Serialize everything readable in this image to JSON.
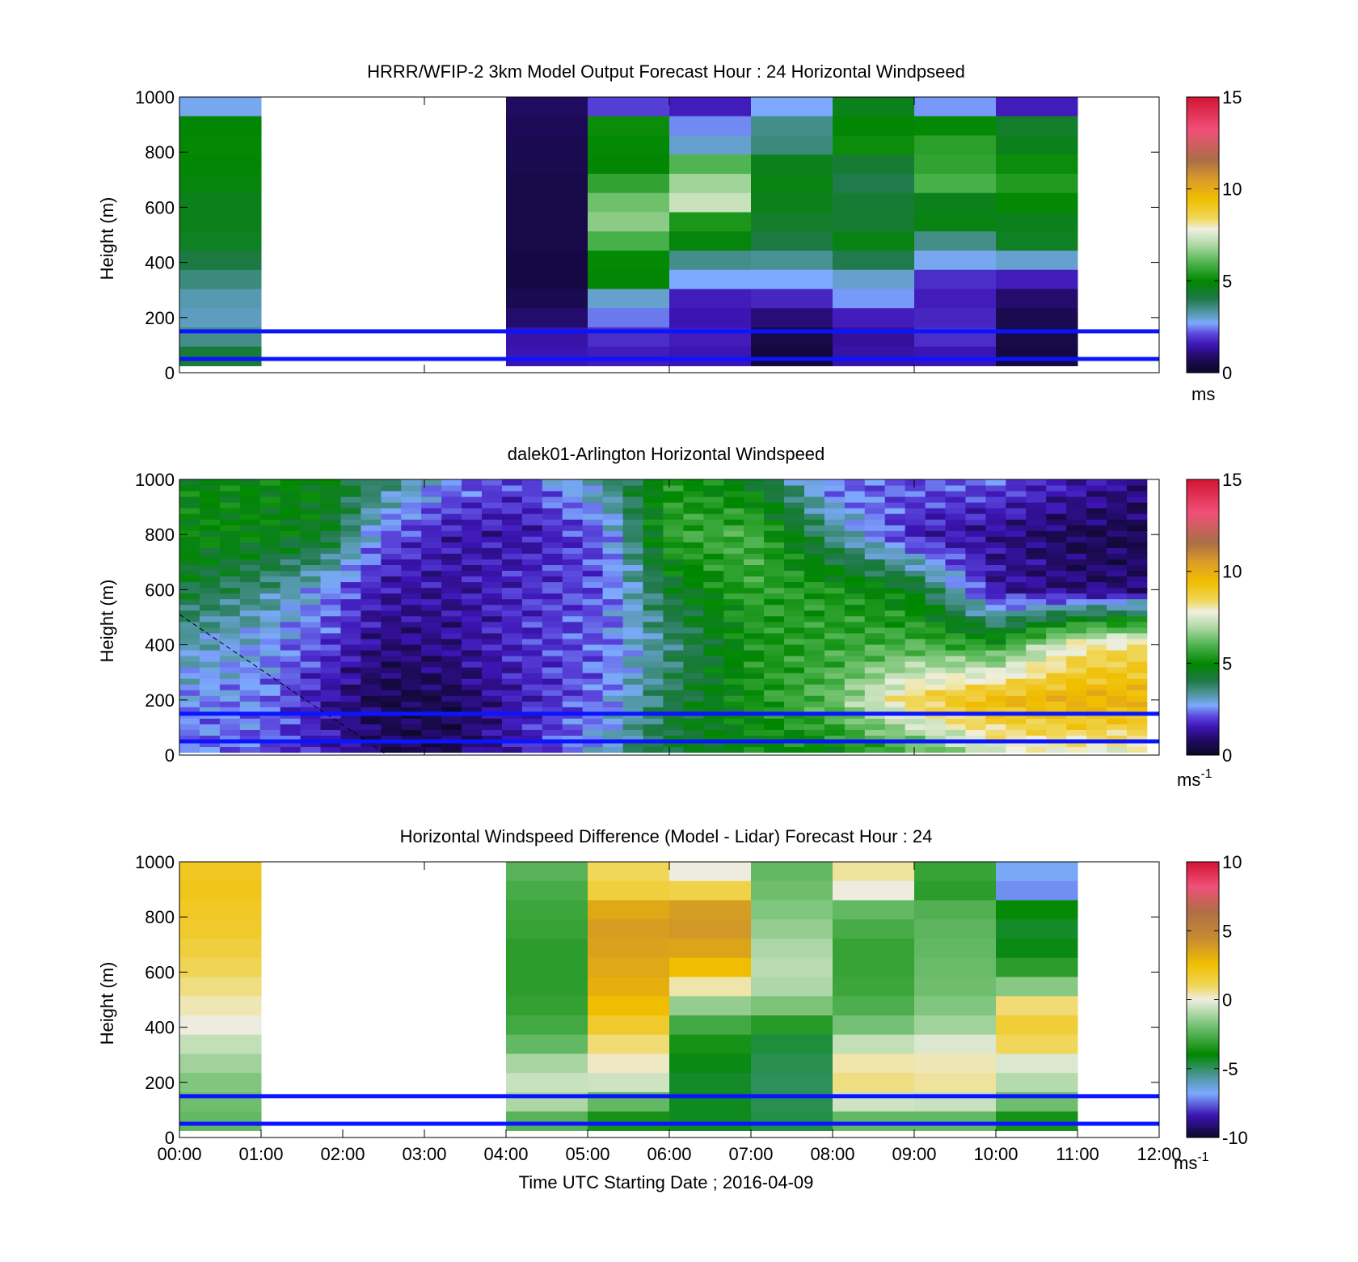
{
  "figure": {
    "xlabel": "Time UTC  Starting Date ; 2016-04-09",
    "x_ticks": [
      "00:00",
      "01:00",
      "02:00",
      "03:00",
      "04:00",
      "05:00",
      "06:00",
      "07:00",
      "08:00",
      "09:00",
      "10:00",
      "11:00",
      "12:00"
    ],
    "reference_heights_m": [
      50,
      150
    ],
    "reference_line_color": "#0a14ff"
  },
  "chart_data": [
    {
      "type": "heatmap",
      "title": "HRRR/WFIP-2 3km Model Output   Forecast Hour : 24 Horizontal Windpseed",
      "ylabel": "Height (m)",
      "ylim": [
        0,
        1000
      ],
      "y_ticks": [
        "0",
        "200",
        "400",
        "600",
        "800",
        "1000"
      ],
      "x_range_hours": [
        0,
        12
      ],
      "colorbar": {
        "range": [
          0,
          15
        ],
        "ticks": [
          "0",
          "5",
          "10",
          "15"
        ],
        "unit": "ms"
      },
      "columns": [
        {
          "start_hour": 0,
          "end_hour": 1,
          "values": [
            2.8,
            4.9,
            5.0,
            4.9,
            4.8,
            4.6,
            4.6,
            4.5,
            4.1,
            3.6,
            3.2,
            3.1,
            3.5,
            4.2
          ]
        },
        {
          "start_hour": 1,
          "end_hour": 4,
          "values": null
        },
        {
          "start_hour": 4,
          "end_hour": 5,
          "values": [
            0.8,
            0.7,
            0.6,
            0.6,
            0.5,
            0.5,
            0.5,
            0.5,
            0.4,
            0.4,
            0.6,
            0.9,
            1.4,
            1.5
          ]
        },
        {
          "start_hour": 5,
          "end_hour": 6,
          "values": [
            2.0,
            5.1,
            5.0,
            4.9,
            5.6,
            6.3,
            6.6,
            5.9,
            5.0,
            4.9,
            3.0,
            2.4,
            1.8,
            1.6
          ]
        },
        {
          "start_hour": 6,
          "end_hour": 7,
          "values": [
            1.6,
            2.5,
            3.0,
            6.0,
            6.8,
            7.3,
            5.3,
            4.8,
            3.5,
            2.7,
            1.6,
            1.5,
            1.6,
            1.5
          ]
        },
        {
          "start_hour": 7,
          "end_hour": 8,
          "values": [
            2.7,
            3.5,
            3.6,
            4.6,
            4.7,
            4.6,
            4.4,
            4.1,
            3.4,
            2.7,
            1.7,
            1.0,
            0.5,
            0.3
          ]
        },
        {
          "start_hour": 8,
          "end_hour": 9,
          "values": [
            4.6,
            4.9,
            5.1,
            4.3,
            4.0,
            4.3,
            4.3,
            4.7,
            4.0,
            3.0,
            2.6,
            1.6,
            1.3,
            1.4
          ]
        },
        {
          "start_hour": 9,
          "end_hour": 10,
          "values": [
            2.6,
            5.0,
            5.5,
            5.6,
            5.9,
            4.6,
            4.7,
            3.5,
            2.8,
            1.8,
            1.6,
            1.7,
            1.8,
            1.5
          ]
        },
        {
          "start_hour": 10,
          "end_hour": 11,
          "values": [
            1.6,
            4.4,
            4.6,
            5.1,
            5.4,
            5.0,
            4.6,
            4.5,
            3.0,
            1.6,
            0.9,
            0.6,
            0.5,
            0.4
          ]
        },
        {
          "start_hour": 11,
          "end_hour": 12,
          "values": null
        }
      ]
    },
    {
      "type": "heatmap",
      "title": "dalek01-Arlington  Horizontal Windspeed",
      "ylabel": "Height (m)",
      "ylim": [
        0,
        1000
      ],
      "y_ticks": [
        "0",
        "200",
        "400",
        "600",
        "800",
        "1000"
      ],
      "x_range_hours": [
        0,
        12
      ],
      "colorbar": {
        "range": [
          0,
          15
        ],
        "ticks": [
          "0",
          "5",
          "10",
          "15"
        ],
        "unit": "ms",
        "unit_exponent": "-1"
      },
      "field_keyframes": [
        {
          "hour": 0.0,
          "profile": [
            [
              0,
              2.3
            ],
            [
              200,
              2.6
            ],
            [
              400,
              3.2
            ],
            [
              600,
              4.3
            ],
            [
              800,
              5.0
            ],
            [
              1000,
              4.8
            ]
          ]
        },
        {
          "hour": 1.0,
          "profile": [
            [
              0,
              2.2
            ],
            [
              200,
              2.5
            ],
            [
              400,
              2.7
            ],
            [
              600,
              3.6
            ],
            [
              800,
              4.8
            ],
            [
              1000,
              4.9
            ]
          ]
        },
        {
          "hour": 1.8,
          "profile": [
            [
              0,
              1.5
            ],
            [
              200,
              1.4
            ],
            [
              400,
              2.0
            ],
            [
              600,
              2.6
            ],
            [
              800,
              4.5
            ],
            [
              1000,
              4.8
            ]
          ]
        },
        {
          "hour": 2.5,
          "profile": [
            [
              0,
              0.8
            ],
            [
              200,
              0.5
            ],
            [
              400,
              1.0
            ],
            [
              600,
              1.4
            ],
            [
              800,
              2.3
            ],
            [
              1000,
              3.8
            ]
          ]
        },
        {
          "hour": 3.3,
          "profile": [
            [
              0,
              0.6
            ],
            [
              200,
              0.6
            ],
            [
              400,
              1.2
            ],
            [
              600,
              1.3
            ],
            [
              800,
              1.5
            ],
            [
              1000,
              2.5
            ]
          ]
        },
        {
          "hour": 4.2,
          "profile": [
            [
              0,
              1.6
            ],
            [
              200,
              1.6
            ],
            [
              400,
              1.8
            ],
            [
              600,
              1.8
            ],
            [
              800,
              1.4
            ],
            [
              1000,
              2.0
            ]
          ]
        },
        {
          "hour": 5.2,
          "profile": [
            [
              0,
              3.0
            ],
            [
              200,
              2.4
            ],
            [
              400,
              2.3
            ],
            [
              600,
              2.2
            ],
            [
              800,
              2.2
            ],
            [
              1000,
              3.5
            ]
          ]
        },
        {
          "hour": 6.0,
          "profile": [
            [
              0,
              4.5
            ],
            [
              200,
              4.0
            ],
            [
              400,
              3.6
            ],
            [
              600,
              4.3
            ],
            [
              800,
              5.6
            ],
            [
              1000,
              5.2
            ]
          ]
        },
        {
          "hour": 7.0,
          "profile": [
            [
              0,
              4.8
            ],
            [
              200,
              5.2
            ],
            [
              400,
              5.2
            ],
            [
              600,
              5.6
            ],
            [
              800,
              5.9
            ],
            [
              1000,
              4.6
            ]
          ]
        },
        {
          "hour": 8.0,
          "profile": [
            [
              0,
              4.9
            ],
            [
              200,
              6.2
            ],
            [
              400,
              5.6
            ],
            [
              600,
              5.3
            ],
            [
              800,
              3.5
            ],
            [
              1000,
              2.2
            ]
          ]
        },
        {
          "hour": 9.0,
          "profile": [
            [
              0,
              5.6
            ],
            [
              200,
              8.6
            ],
            [
              400,
              5.9
            ],
            [
              600,
              4.6
            ],
            [
              800,
              1.6
            ],
            [
              1000,
              2.3
            ]
          ]
        },
        {
          "hour": 10.0,
          "profile": [
            [
              0,
              7.3
            ],
            [
              200,
              9.6
            ],
            [
              400,
              5.4
            ],
            [
              600,
              1.4
            ],
            [
              800,
              1.2
            ],
            [
              1000,
              2.2
            ]
          ]
        },
        {
          "hour": 11.0,
          "profile": [
            [
              0,
              7.6
            ],
            [
              200,
              9.9
            ],
            [
              400,
              8.0
            ],
            [
              600,
              1.0
            ],
            [
              800,
              0.6
            ],
            [
              1000,
              1.6
            ]
          ]
        },
        {
          "hour": 11.9,
          "profile": [
            [
              0,
              7.6
            ],
            [
              200,
              9.8
            ],
            [
              400,
              8.4
            ],
            [
              600,
              1.0
            ],
            [
              800,
              0.6
            ],
            [
              1000,
              1.0
            ]
          ]
        }
      ],
      "x_range_with_data_hours": [
        0,
        11.85
      ]
    },
    {
      "type": "heatmap",
      "title": "Horizontal Windspeed Difference (Model - Lidar) Forecast Hour : 24",
      "ylabel": "Height (m)",
      "ylim": [
        0,
        1000
      ],
      "y_ticks": [
        "0",
        "200",
        "400",
        "600",
        "800",
        "1000"
      ],
      "x_range_hours": [
        0,
        12
      ],
      "colorbar": {
        "range": [
          -10,
          10
        ],
        "ticks": [
          "-10",
          "-5",
          "0",
          "5",
          "10"
        ],
        "unit": "ms",
        "unit_exponent": "-1"
      },
      "columns": [
        {
          "start_hour": 0,
          "end_hour": 1,
          "values": [
            2.0,
            2.1,
            1.9,
            1.8,
            1.5,
            1.1,
            0.7,
            0.3,
            0.0,
            -0.7,
            -1.2,
            -1.7,
            -2.0,
            -2.2
          ]
        },
        {
          "start_hour": 1,
          "end_hour": 4,
          "values": null
        },
        {
          "start_hour": 4,
          "end_hour": 5,
          "values": [
            -2.4,
            -2.7,
            -2.9,
            -3.0,
            -3.2,
            -3.2,
            -3.2,
            -3.1,
            -2.8,
            -2.2,
            -1.1,
            -0.6,
            -1.0,
            -2.4
          ]
        },
        {
          "start_hour": 5,
          "end_hour": 6,
          "values": [
            1.0,
            1.5,
            3.4,
            3.8,
            3.6,
            3.4,
            3.1,
            2.6,
            1.8,
            0.8,
            0.2,
            -0.5,
            -2.2,
            -3.6
          ]
        },
        {
          "start_hour": 6,
          "end_hour": 7,
          "values": [
            0.0,
            1.3,
            3.8,
            4.0,
            3.5,
            2.6,
            0.4,
            -1.4,
            -2.8,
            -3.6,
            -4.2,
            -4.4,
            -4.3,
            -4.3
          ]
        },
        {
          "start_hour": 7,
          "end_hour": 8,
          "values": [
            -2.2,
            -2.0,
            -1.7,
            -1.4,
            -1.0,
            -0.8,
            -1.0,
            -1.8,
            -3.3,
            -4.6,
            -4.8,
            -4.9,
            -4.8,
            -4.7
          ]
        },
        {
          "start_hour": 8,
          "end_hour": 9,
          "values": [
            0.5,
            0.0,
            -2.2,
            -2.7,
            -3.0,
            -3.0,
            -2.9,
            -2.6,
            -1.9,
            -0.7,
            0.4,
            0.7,
            -0.5,
            -2.2
          ]
        },
        {
          "start_hour": 9,
          "end_hour": 10,
          "values": [
            -3.0,
            -3.2,
            -2.5,
            -2.3,
            -2.2,
            -2.1,
            -2.0,
            -1.7,
            -1.2,
            -0.3,
            0.3,
            0.5,
            -0.6,
            -2.2
          ]
        },
        {
          "start_hour": 10,
          "end_hour": 11,
          "values": [
            -6.7,
            -7.1,
            -3.9,
            -4.4,
            -4.2,
            -3.2,
            -1.6,
            0.8,
            1.6,
            1.0,
            -0.3,
            -0.9,
            -2.0,
            -3.6
          ]
        },
        {
          "start_hour": 11,
          "end_hour": 12,
          "values": null
        }
      ]
    }
  ]
}
